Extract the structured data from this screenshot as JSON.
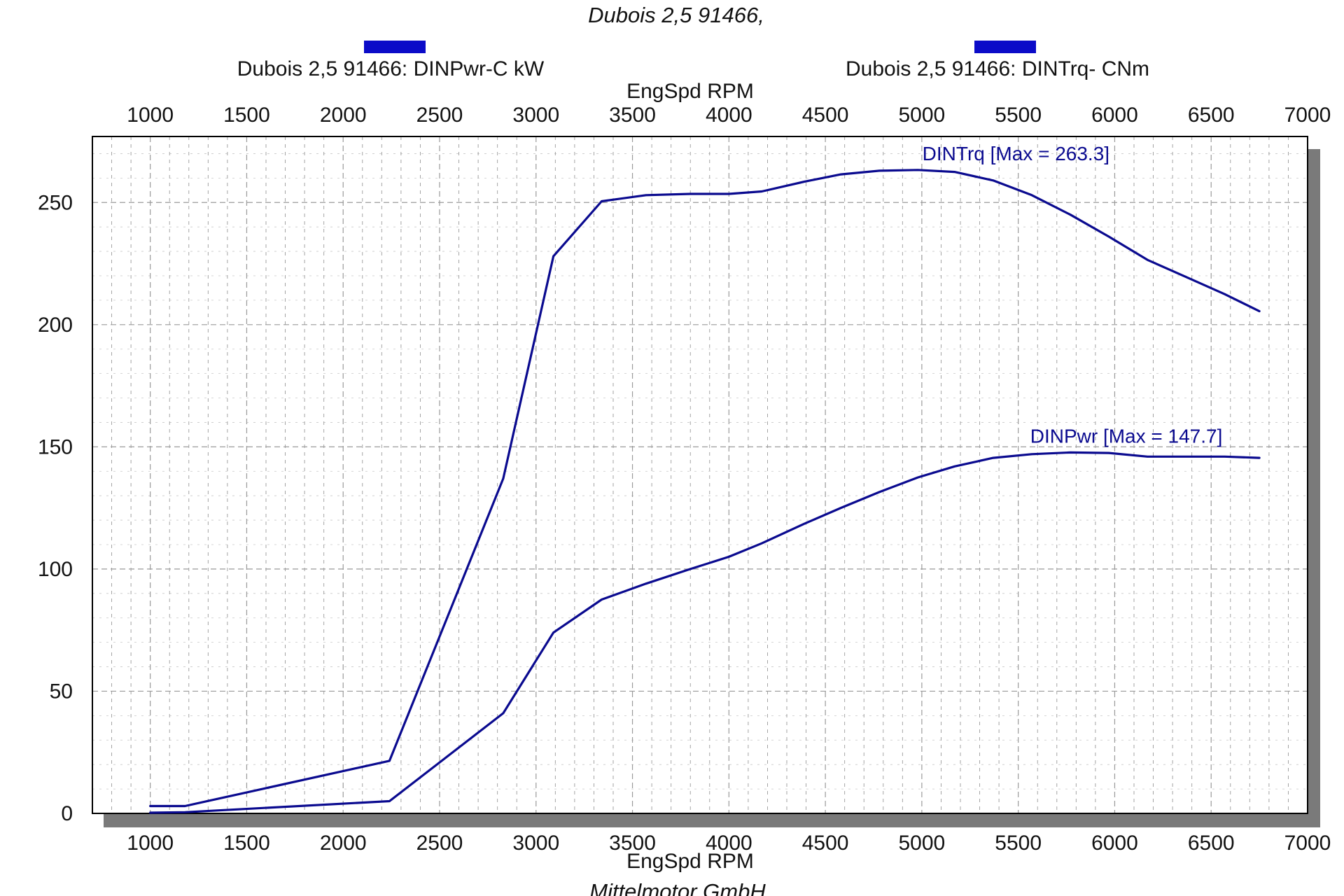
{
  "subtitle": "Dubois 2,5 91466,",
  "footer": "Mittelmotor GmbH",
  "colors": {
    "series": "#0a0a8f",
    "legend_swatch": "#0b0bc8",
    "shadow": "#7a7a7a",
    "grid": "#9a9a9a"
  },
  "chart_data": {
    "type": "line",
    "xlabel_top": "EngSpd  RPM",
    "xlabel_bottom": "EngSpd  RPM",
    "ylabel": "",
    "xlim": [
      700,
      7000
    ],
    "ylim": [
      0,
      277
    ],
    "x_ticks": [
      1000,
      1500,
      2000,
      2500,
      3000,
      3500,
      4000,
      4500,
      5000,
      5500,
      6000,
      6500,
      7000
    ],
    "y_ticks": [
      0,
      50,
      100,
      150,
      200,
      250
    ],
    "grid": true,
    "legend_position": "top",
    "legend": [
      "Dubois 2,5 91466: DINPwr-C kW",
      "Dubois 2,5 91466: DINTrq- CNm"
    ],
    "series": [
      {
        "name": "DINTrq",
        "legend": "Dubois 2,5 91466: DINTrq- CNm",
        "max_label": "DINTrq [Max = 263.3]",
        "x": [
          1000,
          1180,
          2240,
          2830,
          3090,
          3340,
          3570,
          3800,
          4000,
          4170,
          4390,
          4580,
          4780,
          4980,
          5170,
          5370,
          5570,
          5770,
          5970,
          6170,
          6370,
          6570,
          6750
        ],
        "y": [
          3,
          3,
          21.5,
          137,
          228,
          250.5,
          253,
          253.5,
          253.5,
          254.5,
          258.5,
          261.5,
          263,
          263.3,
          262.5,
          259,
          253,
          245,
          236,
          226.5,
          219.5,
          212.5,
          205.5
        ]
      },
      {
        "name": "DINPwr",
        "legend": "Dubois 2,5 91466: DINPwr-C kW",
        "max_label": "DINPwr [Max = 147.7]",
        "x": [
          1000,
          1180,
          2240,
          2830,
          3090,
          3340,
          3570,
          3800,
          4000,
          4170,
          4390,
          4580,
          4780,
          4980,
          5170,
          5370,
          5570,
          5770,
          5970,
          6170,
          6370,
          6570,
          6750
        ],
        "y": [
          0.3,
          0.5,
          5,
          41,
          74,
          87.5,
          94,
          100,
          105,
          110.5,
          118.5,
          125,
          131.5,
          137.5,
          142,
          145.5,
          147,
          147.7,
          147.5,
          146,
          146,
          146,
          145.5
        ]
      }
    ]
  }
}
